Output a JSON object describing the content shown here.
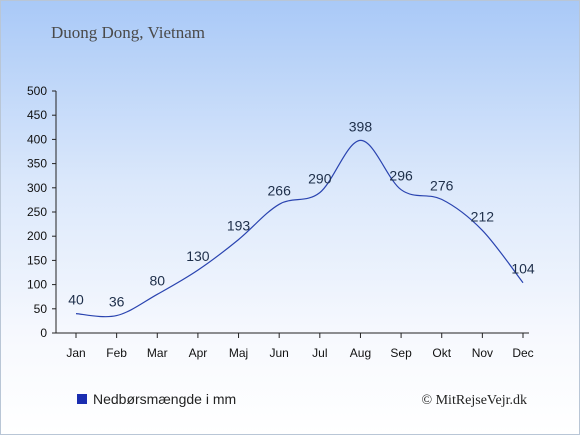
{
  "chart_data": {
    "type": "line",
    "title": "Duong Dong, Vietnam",
    "categories": [
      "Jan",
      "Feb",
      "Mar",
      "Apr",
      "Maj",
      "Jun",
      "Jul",
      "Aug",
      "Sep",
      "Okt",
      "Nov",
      "Dec"
    ],
    "series": [
      {
        "name": "Nedbørsmængde i mm",
        "values": [
          40,
          36,
          80,
          130,
          193,
          266,
          290,
          398,
          296,
          276,
          212,
          104
        ]
      }
    ],
    "yticks": [
      0,
      50,
      100,
      150,
      200,
      250,
      300,
      350,
      400,
      450,
      500
    ],
    "ylim": [
      0,
      500
    ],
    "grid": false,
    "legend": "bottom-left",
    "line_color": "#2a44b0",
    "legend_color": "#1a2db0"
  },
  "credit": "© MitRejseVejr.dk"
}
